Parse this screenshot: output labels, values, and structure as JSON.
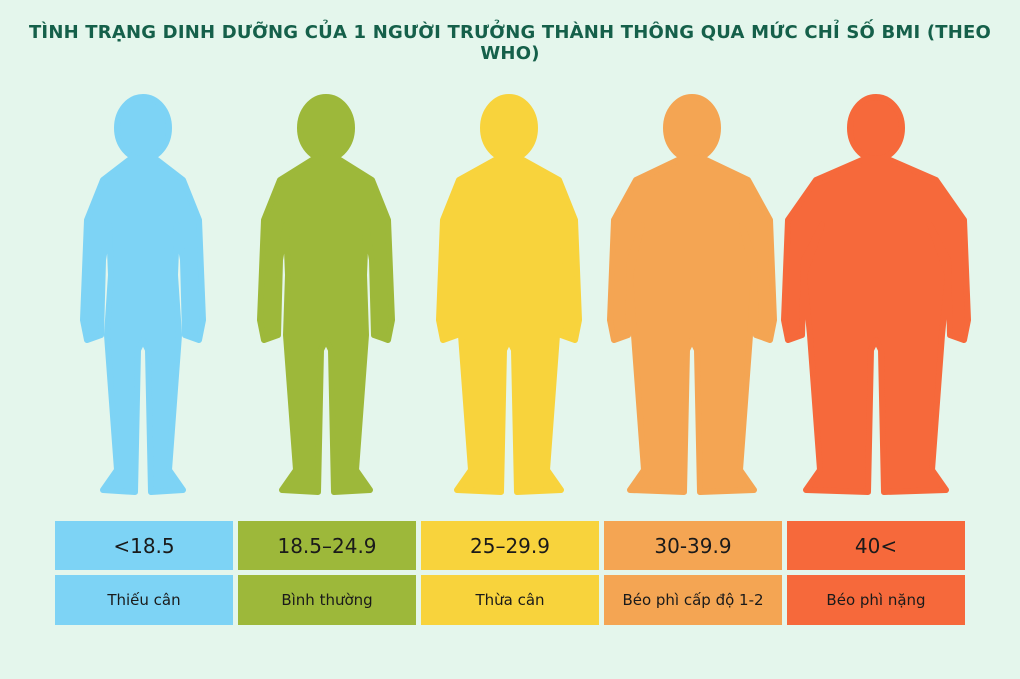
{
  "title": "TÌNH TRẠNG DINH DƯỠNG CỦA 1 NGƯỜI TRƯỞNG THÀNH THÔNG QUA MỨC CHỈ SỐ BMI (THEO WHO)",
  "columns": [
    {
      "range": "<18.5",
      "label": "Thiếu cân"
    },
    {
      "range": "18.5–24.9",
      "label": "Bình thường"
    },
    {
      "range": "25–29.9",
      "label": "Thừa cân"
    },
    {
      "range": "30-39.9",
      "label": "Béo phì cấp độ 1-2"
    },
    {
      "range": "40<",
      "label": "Béo phì nặng"
    }
  ]
}
